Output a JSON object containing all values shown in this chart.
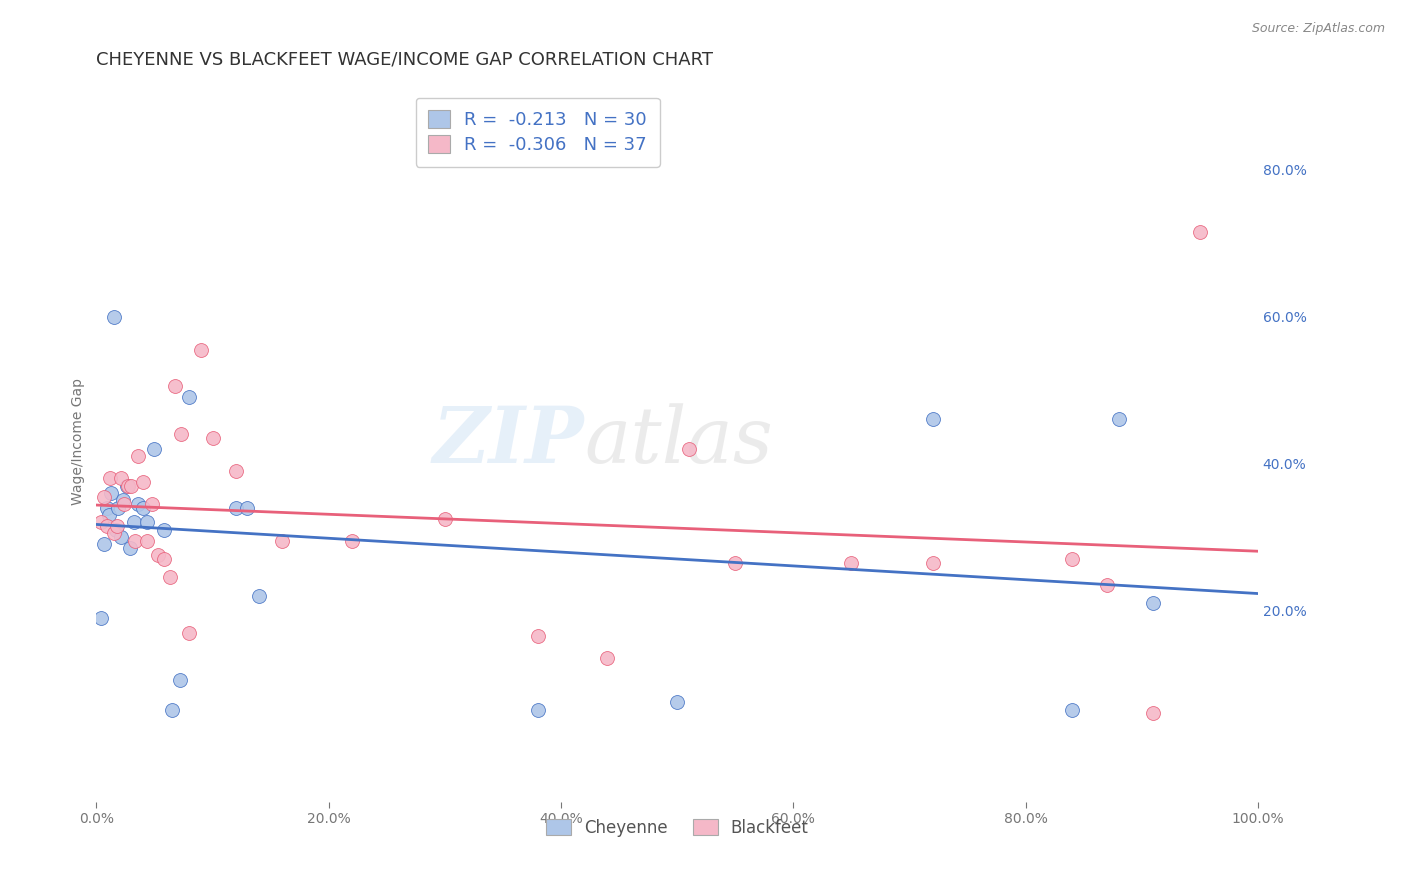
{
  "title": "CHEYENNE VS BLACKFEET WAGE/INCOME GAP CORRELATION CHART",
  "source": "Source: ZipAtlas.com",
  "ylabel": "Wage/Income Gap",
  "watermark_zip": "ZIP",
  "watermark_atlas": "atlas",
  "cheyenne_R": -0.213,
  "cheyenne_N": 30,
  "blackfeet_R": -0.306,
  "blackfeet_N": 37,
  "cheyenne_color": "#aec6e8",
  "blackfeet_color": "#f5b8c8",
  "cheyenne_line_color": "#4472c4",
  "blackfeet_line_color": "#e8607a",
  "background_color": "#ffffff",
  "grid_color": "#cccccc",
  "xlim": [
    0.0,
    1.0
  ],
  "ylim": [
    -0.06,
    0.92
  ],
  "cheyenne_x": [
    0.004,
    0.007,
    0.009,
    0.011,
    0.013,
    0.015,
    0.017,
    0.019,
    0.021,
    0.023,
    0.026,
    0.029,
    0.032,
    0.036,
    0.04,
    0.044,
    0.05,
    0.058,
    0.065,
    0.072,
    0.08,
    0.12,
    0.13,
    0.14,
    0.38,
    0.5,
    0.72,
    0.84,
    0.88,
    0.91
  ],
  "cheyenne_y": [
    0.19,
    0.29,
    0.34,
    0.33,
    0.36,
    0.6,
    0.31,
    0.34,
    0.3,
    0.35,
    0.37,
    0.285,
    0.32,
    0.345,
    0.34,
    0.32,
    0.42,
    0.31,
    0.065,
    0.105,
    0.49,
    0.34,
    0.34,
    0.22,
    0.065,
    0.075,
    0.46,
    0.065,
    0.46,
    0.21
  ],
  "blackfeet_x": [
    0.004,
    0.007,
    0.009,
    0.012,
    0.015,
    0.018,
    0.021,
    0.024,
    0.027,
    0.03,
    0.033,
    0.036,
    0.04,
    0.044,
    0.048,
    0.053,
    0.058,
    0.063,
    0.068,
    0.073,
    0.08,
    0.09,
    0.1,
    0.12,
    0.16,
    0.22,
    0.3,
    0.38,
    0.44,
    0.51,
    0.55,
    0.65,
    0.72,
    0.84,
    0.87,
    0.91,
    0.95
  ],
  "blackfeet_y": [
    0.32,
    0.355,
    0.315,
    0.38,
    0.305,
    0.315,
    0.38,
    0.345,
    0.37,
    0.37,
    0.295,
    0.41,
    0.375,
    0.295,
    0.345,
    0.275,
    0.27,
    0.245,
    0.505,
    0.44,
    0.17,
    0.555,
    0.435,
    0.39,
    0.295,
    0.295,
    0.325,
    0.165,
    0.135,
    0.42,
    0.265,
    0.265,
    0.265,
    0.27,
    0.235,
    0.06,
    0.715
  ],
  "right_ytick_labels": [
    "80.0%",
    "60.0%",
    "40.0%",
    "20.0%"
  ],
  "right_ytick_values": [
    0.8,
    0.6,
    0.4,
    0.2
  ],
  "xtick_labels": [
    "0.0%",
    "20.0%",
    "40.0%",
    "60.0%",
    "80.0%",
    "100.0%"
  ],
  "xtick_values": [
    0.0,
    0.2,
    0.4,
    0.6,
    0.8,
    1.0
  ],
  "title_fontsize": 13,
  "label_fontsize": 10,
  "tick_fontsize": 10,
  "marker_size": 100,
  "line_width": 2.0
}
